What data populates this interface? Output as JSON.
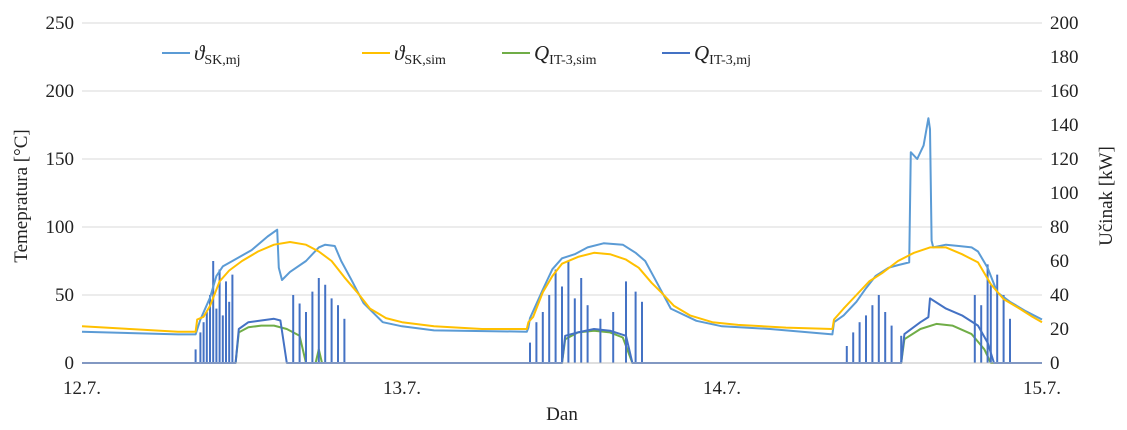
{
  "chart_data": {
    "type": "line",
    "xlabel": "Dan",
    "ylabel": "Temepratura  [°C]",
    "y2label": "Učinak  [kW]",
    "x_ticks": [
      "12.7.",
      "13.7.",
      "14.7.",
      "15.7."
    ],
    "xlim": [
      0,
      3
    ],
    "ylim": [
      0,
      250
    ],
    "y2lim": [
      0,
      200
    ],
    "y_ticks": [
      "0",
      "50",
      "100",
      "150",
      "200",
      "250"
    ],
    "y2_ticks": [
      "0",
      "20",
      "40",
      "60",
      "80",
      "100",
      "120",
      "140",
      "160",
      "180",
      "200"
    ],
    "grid": true,
    "legend_position": "top",
    "series": [
      {
        "name": "ϑSK,mj",
        "symbol": "ϑ",
        "subscript": "SK,mj",
        "color": "#5B9BD5",
        "axis": "left",
        "points": [
          [
            0,
            23
          ],
          [
            0.3,
            21
          ],
          [
            0.355,
            21
          ],
          [
            0.37,
            32
          ],
          [
            0.4,
            48
          ],
          [
            0.42,
            64
          ],
          [
            0.44,
            71
          ],
          [
            0.47,
            75
          ],
          [
            0.53,
            83
          ],
          [
            0.58,
            93
          ],
          [
            0.61,
            98
          ],
          [
            0.615,
            70
          ],
          [
            0.625,
            61
          ],
          [
            0.65,
            67
          ],
          [
            0.7,
            75
          ],
          [
            0.74,
            85
          ],
          [
            0.76,
            87
          ],
          [
            0.79,
            86
          ],
          [
            0.81,
            75
          ],
          [
            0.84,
            62
          ],
          [
            0.88,
            44
          ],
          [
            0.94,
            30
          ],
          [
            1.0,
            27
          ],
          [
            1.1,
            24
          ],
          [
            1.39,
            23
          ],
          [
            1.395,
            26
          ],
          [
            1.4,
            33
          ],
          [
            1.44,
            54
          ],
          [
            1.47,
            69
          ],
          [
            1.5,
            77
          ],
          [
            1.54,
            80
          ],
          [
            1.58,
            85
          ],
          [
            1.63,
            88
          ],
          [
            1.69,
            87
          ],
          [
            1.73,
            81
          ],
          [
            1.76,
            75
          ],
          [
            1.79,
            62
          ],
          [
            1.84,
            40
          ],
          [
            1.92,
            31
          ],
          [
            2.0,
            27
          ],
          [
            2.15,
            25
          ],
          [
            2.345,
            21
          ],
          [
            2.35,
            30
          ],
          [
            2.38,
            35
          ],
          [
            2.42,
            45
          ],
          [
            2.45,
            55
          ],
          [
            2.48,
            64
          ],
          [
            2.52,
            70
          ],
          [
            2.55,
            72
          ],
          [
            2.585,
            74
          ],
          [
            2.59,
            155
          ],
          [
            2.61,
            150
          ],
          [
            2.63,
            160
          ],
          [
            2.645,
            180
          ],
          [
            2.65,
            172
          ],
          [
            2.655,
            90
          ],
          [
            2.66,
            85
          ],
          [
            2.7,
            87
          ],
          [
            2.74,
            86
          ],
          [
            2.78,
            85
          ],
          [
            2.8,
            82
          ],
          [
            2.83,
            70
          ],
          [
            2.86,
            52
          ],
          [
            2.9,
            45
          ],
          [
            2.95,
            38
          ],
          [
            3.0,
            32
          ]
        ]
      },
      {
        "name": "ϑSK,sim",
        "symbol": "ϑ",
        "subscript": "SK,sim",
        "color": "#FFC000",
        "axis": "left",
        "points": [
          [
            0,
            27
          ],
          [
            0.15,
            25
          ],
          [
            0.3,
            23
          ],
          [
            0.355,
            23
          ],
          [
            0.36,
            32
          ],
          [
            0.38,
            34
          ],
          [
            0.4,
            42
          ],
          [
            0.43,
            60
          ],
          [
            0.46,
            68
          ],
          [
            0.5,
            75
          ],
          [
            0.55,
            82
          ],
          [
            0.6,
            87
          ],
          [
            0.65,
            89
          ],
          [
            0.7,
            87
          ],
          [
            0.74,
            82
          ],
          [
            0.78,
            75
          ],
          [
            0.82,
            63
          ],
          [
            0.86,
            52
          ],
          [
            0.9,
            40
          ],
          [
            0.95,
            33
          ],
          [
            1.0,
            30
          ],
          [
            1.1,
            27
          ],
          [
            1.25,
            25
          ],
          [
            1.39,
            25
          ],
          [
            1.395,
            30
          ],
          [
            1.41,
            34
          ],
          [
            1.44,
            52
          ],
          [
            1.47,
            64
          ],
          [
            1.5,
            73
          ],
          [
            1.55,
            78
          ],
          [
            1.6,
            81
          ],
          [
            1.65,
            80
          ],
          [
            1.7,
            76
          ],
          [
            1.74,
            70
          ],
          [
            1.78,
            59
          ],
          [
            1.81,
            52
          ],
          [
            1.85,
            42
          ],
          [
            1.9,
            35
          ],
          [
            1.97,
            30
          ],
          [
            2.05,
            28
          ],
          [
            2.2,
            26
          ],
          [
            2.345,
            25
          ],
          [
            2.35,
            32
          ],
          [
            2.38,
            40
          ],
          [
            2.42,
            50
          ],
          [
            2.46,
            60
          ],
          [
            2.5,
            66
          ],
          [
            2.55,
            75
          ],
          [
            2.6,
            81
          ],
          [
            2.65,
            85
          ],
          [
            2.7,
            85
          ],
          [
            2.75,
            80
          ],
          [
            2.8,
            74
          ],
          [
            2.84,
            58
          ],
          [
            2.88,
            47
          ],
          [
            2.93,
            40
          ],
          [
            2.97,
            34
          ],
          [
            3.0,
            30
          ]
        ]
      },
      {
        "name": "QIT-3,sim",
        "symbol": "Q",
        "subscript": "IT-3,sim",
        "color": "#70AD47",
        "axis": "right",
        "points": [
          [
            0,
            0
          ],
          [
            0.48,
            0
          ],
          [
            0.49,
            18
          ],
          [
            0.52,
            21
          ],
          [
            0.56,
            22
          ],
          [
            0.6,
            22
          ],
          [
            0.64,
            20
          ],
          [
            0.68,
            16
          ],
          [
            0.7,
            0
          ],
          [
            0.73,
            0
          ],
          [
            0.74,
            8
          ],
          [
            0.75,
            0
          ],
          [
            1.5,
            0
          ],
          [
            1.51,
            14
          ],
          [
            1.55,
            18
          ],
          [
            1.6,
            19
          ],
          [
            1.65,
            18
          ],
          [
            1.69,
            15
          ],
          [
            1.72,
            0
          ],
          [
            2.56,
            0
          ],
          [
            2.57,
            14
          ],
          [
            2.62,
            20
          ],
          [
            2.67,
            23
          ],
          [
            2.72,
            22
          ],
          [
            2.78,
            17
          ],
          [
            2.82,
            8
          ],
          [
            2.84,
            0
          ],
          [
            3.0,
            0
          ]
        ]
      },
      {
        "name": "QIT-3,mj",
        "symbol": "Q",
        "subscript": "IT-3,mj",
        "color": "#4472C4",
        "axis": "right",
        "points": [
          [
            0,
            0
          ],
          [
            0.48,
            0
          ],
          [
            0.49,
            20
          ],
          [
            0.52,
            24
          ],
          [
            0.56,
            25
          ],
          [
            0.6,
            26
          ],
          [
            0.62,
            25
          ],
          [
            0.64,
            0
          ],
          [
            1.5,
            0
          ],
          [
            1.51,
            16
          ],
          [
            1.55,
            18
          ],
          [
            1.6,
            20
          ],
          [
            1.65,
            19
          ],
          [
            1.7,
            16
          ],
          [
            1.72,
            0
          ],
          [
            2.56,
            0
          ],
          [
            2.57,
            17
          ],
          [
            2.62,
            24
          ],
          [
            2.645,
            27
          ],
          [
            2.65,
            38
          ],
          [
            2.7,
            32
          ],
          [
            2.75,
            28
          ],
          [
            2.8,
            22
          ],
          [
            2.83,
            12
          ],
          [
            2.85,
            0
          ],
          [
            3.0,
            0
          ]
        ],
        "spikes_kW": [
          [
            0.355,
            8
          ],
          [
            0.37,
            18
          ],
          [
            0.38,
            24
          ],
          [
            0.39,
            30
          ],
          [
            0.4,
            40
          ],
          [
            0.41,
            60
          ],
          [
            0.42,
            32
          ],
          [
            0.43,
            55
          ],
          [
            0.44,
            28
          ],
          [
            0.45,
            48
          ],
          [
            0.46,
            36
          ],
          [
            0.47,
            52
          ],
          [
            0.66,
            40
          ],
          [
            0.68,
            35
          ],
          [
            0.7,
            30
          ],
          [
            0.72,
            42
          ],
          [
            0.74,
            50
          ],
          [
            0.76,
            46
          ],
          [
            0.78,
            38
          ],
          [
            0.8,
            34
          ],
          [
            0.82,
            26
          ],
          [
            1.4,
            12
          ],
          [
            1.42,
            24
          ],
          [
            1.44,
            30
          ],
          [
            1.46,
            40
          ],
          [
            1.48,
            55
          ],
          [
            1.5,
            45
          ],
          [
            1.52,
            60
          ],
          [
            1.54,
            38
          ],
          [
            1.56,
            50
          ],
          [
            1.58,
            34
          ],
          [
            1.62,
            26
          ],
          [
            1.66,
            30
          ],
          [
            1.7,
            48
          ],
          [
            1.73,
            42
          ],
          [
            1.75,
            36
          ],
          [
            2.39,
            10
          ],
          [
            2.41,
            18
          ],
          [
            2.43,
            24
          ],
          [
            2.45,
            28
          ],
          [
            2.47,
            34
          ],
          [
            2.49,
            40
          ],
          [
            2.51,
            30
          ],
          [
            2.53,
            22
          ],
          [
            2.56,
            16
          ],
          [
            2.79,
            40
          ],
          [
            2.81,
            34
          ],
          [
            2.83,
            58
          ],
          [
            2.84,
            46
          ],
          [
            2.86,
            52
          ],
          [
            2.88,
            40
          ],
          [
            2.9,
            26
          ]
        ]
      }
    ]
  }
}
